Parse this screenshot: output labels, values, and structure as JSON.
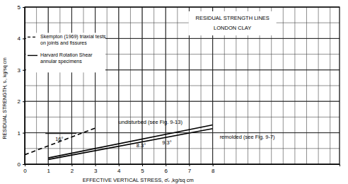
{
  "chart_data": {
    "type": "line",
    "title": [
      "RESIDUAL STRENGTH LINES",
      "LONDON CLAY"
    ],
    "x_label": "EFFECTIVE VERTICAL STRESS, σ̄ᵥ ,kg/sq cm",
    "y_label": "RESIDUAL STRENGTH, τᵣ, kg/sq cm",
    "xlim": [
      0,
      13.4
    ],
    "ylim": [
      0,
      5
    ],
    "xticks": [
      0,
      1,
      2,
      3,
      4,
      5,
      6,
      7,
      8
    ],
    "yticks": [
      0,
      1,
      2,
      3,
      4,
      5
    ],
    "grid": true,
    "legend": "upper left",
    "legend_items": [
      {
        "name": "Skempton (1969) triaxial tests on joints and fissures",
        "line_style": "dashed"
      },
      {
        "name": "Harvard Rotation Shear annular specimens",
        "line_style": "solid"
      }
    ],
    "series": [
      {
        "name": "Skempton (1969)",
        "line_style": "dashed",
        "color": "#000000",
        "x": [
          0,
          3
        ],
        "values": [
          0.3,
          1.15
        ]
      },
      {
        "name": "undisturbed (see Fig. 9-13)",
        "line_style": "solid",
        "color": "#000000",
        "x": [
          1,
          8
        ],
        "values": [
          0.2,
          1.25
        ]
      },
      {
        "name": "remolded (see Fig. 9-7)",
        "line_style": "solid",
        "color": "#000000",
        "x": [
          1,
          8
        ],
        "values": [
          0.15,
          1.13
        ]
      }
    ],
    "annotations": [
      {
        "text": "16°",
        "x": 1.3,
        "y": 0.75
      },
      {
        "text": "8.3°",
        "x": 4.75,
        "y": 0.55
      },
      {
        "text": "9.3°",
        "x": 5.85,
        "y": 0.62
      },
      {
        "text": "undisturbed (see Fig. 9-13)",
        "x": 4.0,
        "y": 1.28
      },
      {
        "text": "remolded (see Fig. 9-7)",
        "x": 8.3,
        "y": 0.8
      }
    ]
  }
}
